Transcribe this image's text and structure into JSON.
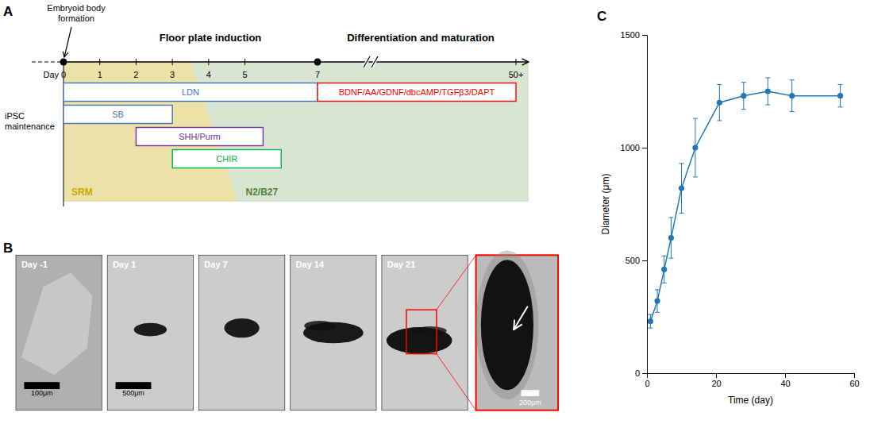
{
  "chart_data": [
    {
      "type": "timeline",
      "title": "A",
      "xlabel": "Day",
      "xticks": [
        0,
        1,
        2,
        3,
        4,
        5,
        7,
        {
          "value": 50,
          "label": "50+"
        }
      ],
      "annotations": [
        "Embryoid body\nformation",
        "Floor plate induction",
        "Differentiation and maturation",
        "iPSC\nmaintenance"
      ],
      "categories": [
        "LDN",
        "SB",
        "SHH/Purm",
        "CHIR",
        "BDNF/AA/GDNF/dbcAMP/TGFβ3/DAPT"
      ],
      "start": [
        0,
        0,
        2,
        3,
        7
      ],
      "end": [
        7,
        3,
        5.5,
        6,
        50
      ],
      "colors": [
        "#4472C4",
        "#4472C4",
        "#7030A0",
        "#00B050",
        "#FF0000"
      ],
      "regions": [
        {
          "name": "SRM",
          "color": "#C8A800"
        },
        {
          "name": "N2/B27",
          "color": "#548235"
        }
      ]
    },
    {
      "type": "images",
      "title": "B",
      "categories": [
        "Day -1",
        "Day 1",
        "Day 7",
        "Day 14",
        "Day 21"
      ],
      "scale_bar_labels": [
        "100μm",
        "500μm",
        null,
        null,
        null
      ],
      "zoom_scale_bar_label": "200μm"
    },
    {
      "type": "line",
      "title": "C",
      "xlabel": "Time (day)",
      "ylabel": "Diameter (μm)",
      "x": [
        1,
        3,
        5,
        7,
        10,
        14,
        21,
        28,
        35,
        42,
        56
      ],
      "values": [
        230,
        320,
        460,
        600,
        820,
        1000,
        1200,
        1230,
        1250,
        1230,
        1230
      ],
      "errors": [
        30,
        50,
        60,
        90,
        110,
        130,
        80,
        60,
        60,
        70,
        50
      ],
      "xlim": [
        0,
        60
      ],
      "ylim": [
        0,
        1500
      ],
      "xticks": [
        0,
        20,
        40,
        60
      ],
      "yticks": [
        0,
        500,
        1000,
        1500
      ],
      "marker": "circle"
    }
  ]
}
